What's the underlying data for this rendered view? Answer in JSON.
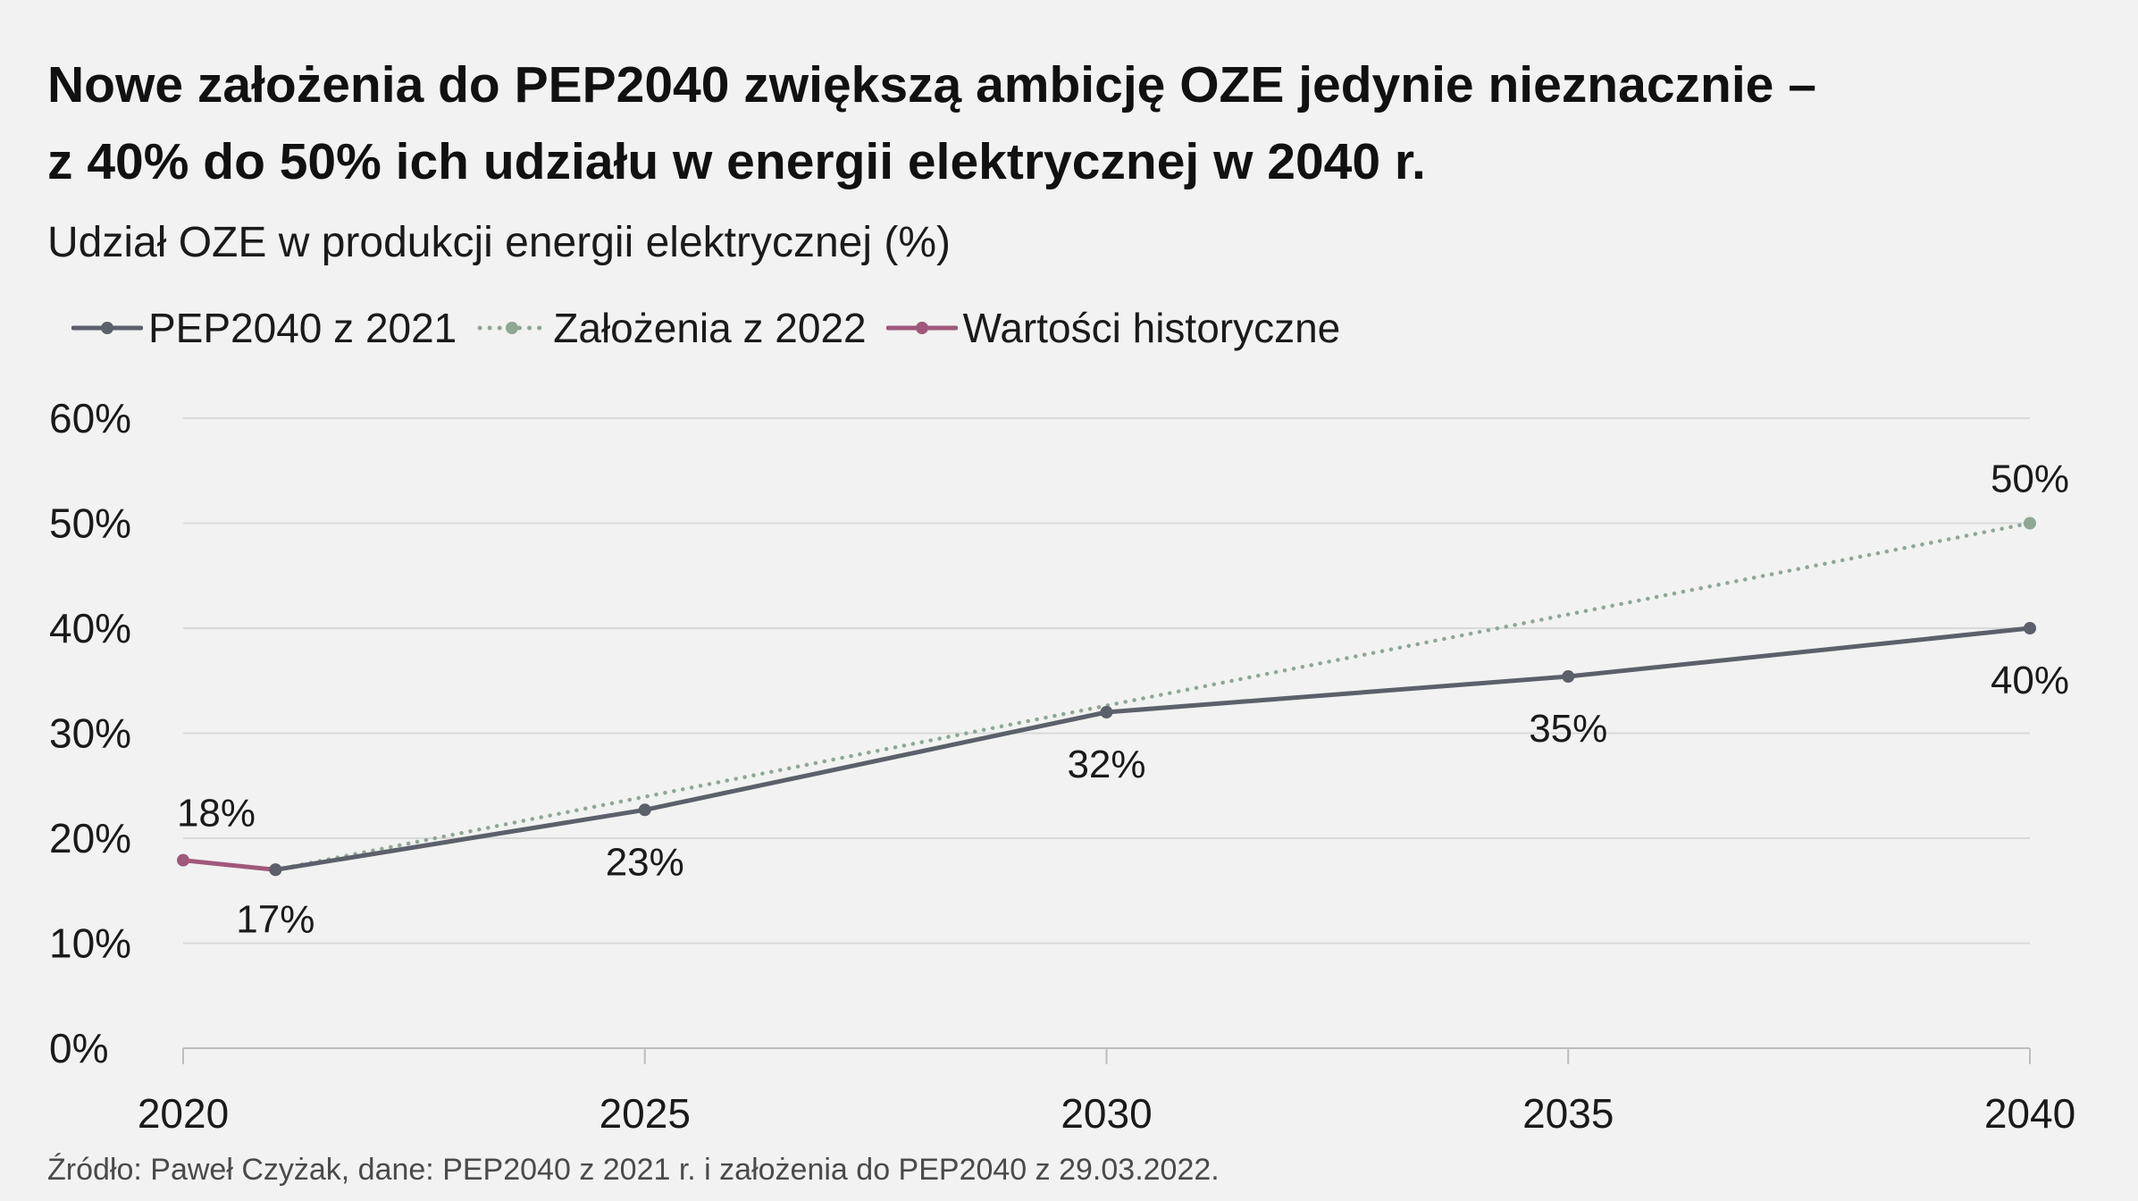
{
  "title_lines": [
    "Nowe założenia do PEP2040 zwiększą ambicję OZE jedynie nieznacznie –",
    "z 40% do 50% ich udziału w energii elektrycznej w 2040 r."
  ],
  "subtitle": "Udział OZE w produkcji energii elektrycznej (%)",
  "source": "Źródło: Paweł Czyżak, dane: PEP2040 z 2021 r. i założenia do PEP2040 z 29.03.2022.",
  "colors": {
    "pep2021": "#5c606b",
    "zalozenia2022": "#8fa794",
    "historyczne": "#a0587a",
    "grid": "#d9d9d9",
    "axis": "#bdbdbd"
  },
  "chart_data": {
    "type": "line",
    "title": "Nowe założenia do PEP2040 zwiększą ambicję OZE jedynie nieznacznie – z 40% do 50% ich udziału w energii elektrycznej w 2040 r.",
    "ylabel": "Udział OZE w produkcji energii elektrycznej (%)",
    "xlim": [
      2020,
      2040
    ],
    "ylim": [
      0,
      60
    ],
    "x_ticks": [
      2020,
      2025,
      2030,
      2035,
      2040
    ],
    "x_tick_labels": [
      "2020",
      "2025",
      "2030",
      "2035",
      "2040"
    ],
    "y_ticks": [
      0,
      10,
      20,
      30,
      40,
      50,
      60
    ],
    "y_tick_labels": [
      "0%",
      "10%",
      "20%",
      "30%",
      "40%",
      "50%",
      "60%"
    ],
    "grid": true,
    "legend_position": "top-left",
    "series": [
      {
        "name": "PEP2040 z 2021",
        "style": "solid",
        "color_key": "pep2021",
        "points": [
          {
            "x": 2021,
            "y": 17,
            "label": "17%"
          },
          {
            "x": 2025,
            "y": 22.7,
            "label": "23%"
          },
          {
            "x": 2030,
            "y": 32,
            "label": "32%"
          },
          {
            "x": 2035,
            "y": 35.4,
            "label": "35%"
          },
          {
            "x": 2040,
            "y": 40,
            "label": "40%"
          }
        ]
      },
      {
        "name": "Założenia z 2022",
        "style": "dotted",
        "color_key": "zalozenia2022",
        "points": [
          {
            "x": 2021,
            "y": 17,
            "label": ""
          },
          {
            "x": 2040,
            "y": 50,
            "label": "50%"
          }
        ]
      },
      {
        "name": "Wartości historyczne",
        "style": "solid",
        "color_key": "historyczne",
        "points": [
          {
            "x": 2020,
            "y": 17.9,
            "label": "18%"
          },
          {
            "x": 2021,
            "y": 17,
            "label": ""
          }
        ]
      }
    ]
  }
}
